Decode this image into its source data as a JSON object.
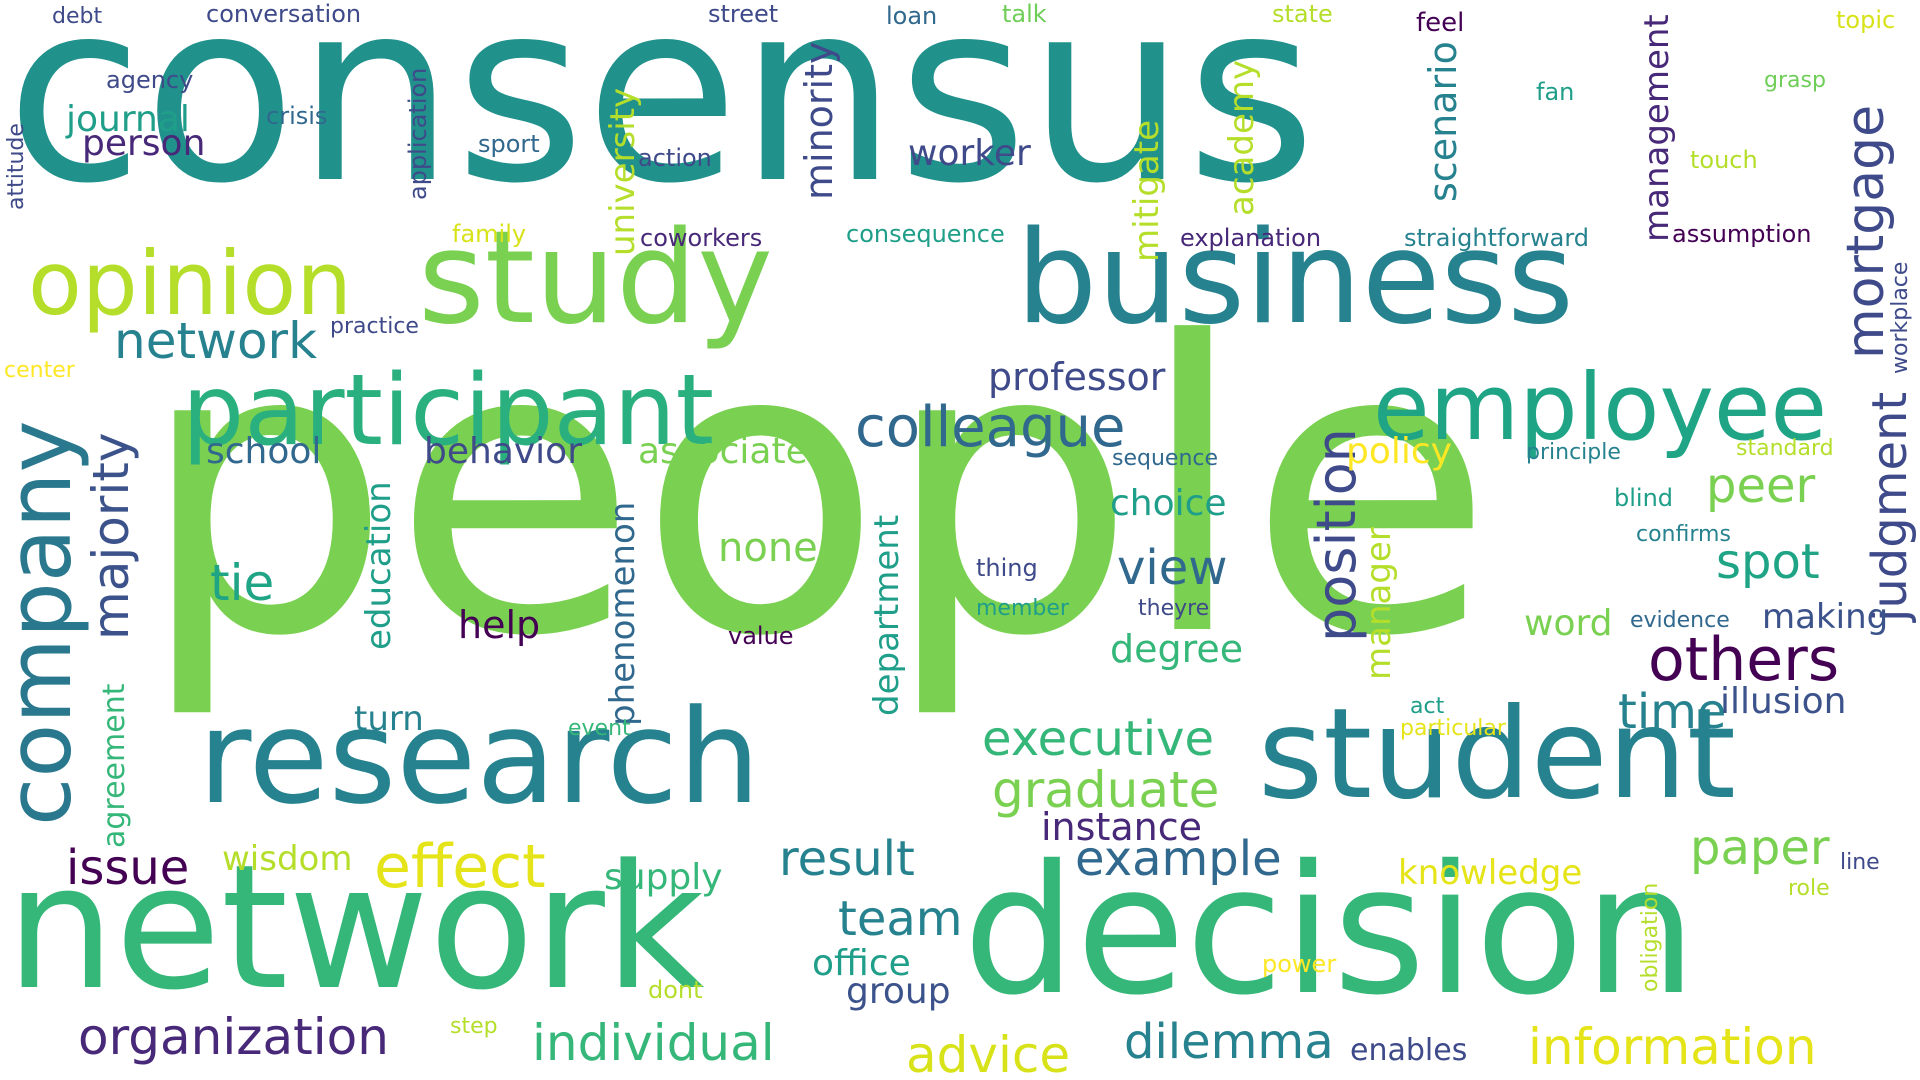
{
  "palette": {
    "dark_purple": "#440154",
    "indigo": "#3e4a89",
    "blue": "#31688e",
    "teal": "#26828e",
    "green_teal": "#1f9e89",
    "green": "#35b779",
    "light_green": "#6ece58",
    "lime": "#b5de2b",
    "yellow": "#fde725"
  },
  "words": {
    "consensus": "consensus",
    "people": "people",
    "network": "network",
    "decision": "decision",
    "research": "research",
    "study": "study",
    "business": "business",
    "student": "student",
    "participant": "participant",
    "employee": "employee",
    "opinion": "opinion",
    "company": "company",
    "colleague": "colleague",
    "others": "others",
    "effect": "effect",
    "mortgage": "mortgage",
    "network_small": "network",
    "position": "position",
    "majority": "majority",
    "organization": "organization",
    "individual": "individual",
    "information": "information",
    "judgment": "judgment",
    "graduate": "graduate",
    "executive": "executive",
    "advice": "advice",
    "example": "example",
    "team": "team",
    "result": "result",
    "dilemma": "dilemma",
    "paper": "paper",
    "time": "time",
    "spot": "spot",
    "peer": "peer",
    "view": "view",
    "tie": "tie",
    "issue": "issue",
    "illusion": "illusion",
    "professor": "professor",
    "university": "university",
    "minority": "minority",
    "management": "management",
    "scenario": "scenario",
    "academy": "academy",
    "mitigate": "mitigate",
    "journal": "journal",
    "person": "person",
    "worker": "worker",
    "school": "school",
    "behavior": "behavior",
    "associate": "associate",
    "policy": "policy",
    "choice": "choice",
    "none": "none",
    "education": "education",
    "phenomenon": "phenomenon",
    "department": "department",
    "manager": "manager",
    "help": "help",
    "degree": "degree",
    "word": "word",
    "making": "making",
    "instance": "instance",
    "supply": "supply",
    "wisdom": "wisdom",
    "office": "office",
    "group": "group",
    "turn": "turn",
    "agreement": "agreement",
    "knowledge": "knowledge",
    "enables": "enables",
    "conversation": "conversation",
    "debt": "debt",
    "street": "street",
    "loan": "loan",
    "talk": "talk",
    "state": "state",
    "feel": "feel",
    "topic": "topic",
    "agency": "agency",
    "crisis": "crisis",
    "application": "application",
    "sport": "sport",
    "action": "action",
    "attitude": "attitude",
    "fan": "fan",
    "grasp": "grasp",
    "touch": "touch",
    "family": "family",
    "coworkers": "coworkers",
    "consequence": "consequence",
    "explanation": "explanation",
    "straightforward": "straightforward",
    "assumption": "assumption",
    "workplace": "workplace",
    "practice": "practice",
    "center": "center",
    "sequence": "sequence",
    "principle": "principle",
    "standard": "standard",
    "blind": "blind",
    "confirms": "confirms",
    "evidence": "evidence",
    "thing": "thing",
    "member": "member",
    "theyre": "theyre",
    "value": "value",
    "act": "act",
    "particular": "particular",
    "event": "event",
    "line": "line",
    "role": "role",
    "obligation": "obligation",
    "power": "power",
    "dont": "dont",
    "step": "step"
  }
}
